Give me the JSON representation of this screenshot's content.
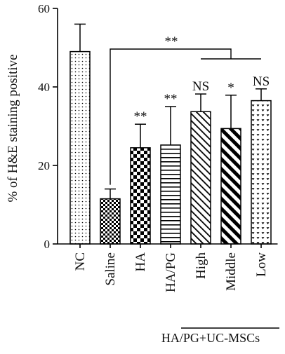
{
  "chart_data": {
    "type": "bar",
    "categories": [
      "NC",
      "Saline",
      "HA",
      "HA/PG",
      "High",
      "Middle",
      "Low"
    ],
    "values": [
      49,
      11.5,
      24.5,
      25.2,
      33.7,
      29.4,
      36.5
    ],
    "errors": [
      7,
      2.5,
      6,
      9.8,
      4.5,
      8.5,
      3
    ],
    "significance": [
      "",
      "",
      "**",
      "**",
      "NS",
      "*",
      "NS"
    ],
    "comparison_label": "**",
    "ylabel": "% of H&E staining positive",
    "ylim": [
      0,
      60
    ],
    "yticks": [
      0,
      20,
      40,
      60
    ],
    "group_label": "HA/PG+UC-MSCs",
    "patterns": [
      "dots",
      "checker-small",
      "checker-large",
      "hlines",
      "diag-thin",
      "diag-bold",
      "hearts"
    ],
    "bar_color": "#000000"
  }
}
